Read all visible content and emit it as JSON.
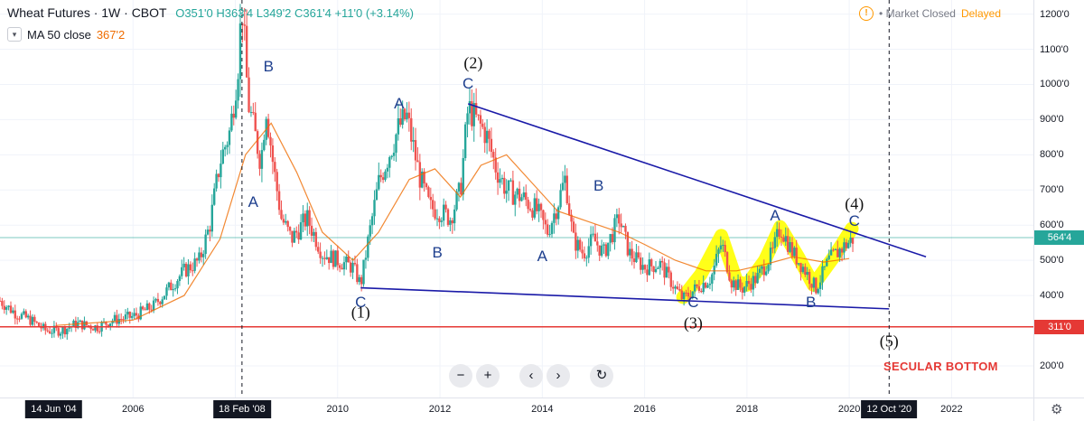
{
  "header": {
    "symbol": "Wheat Futures · 1W · CBOT",
    "open": "O351'0",
    "high": "H363'4",
    "low": "L349'2",
    "close": "C361'4",
    "change": "+11'0 (+3.14%)",
    "ma_label": "MA 50 close",
    "ma_value": "367'2",
    "market_status": "Market Closed",
    "delayed": "Delayed",
    "chevron_icon": "chevron-down-icon",
    "warning_icon": "exclamation-circle-icon"
  },
  "colors": {
    "up": "#26a69a",
    "down": "#ef5350",
    "ma": "#ef6c00",
    "trendline": "#1a1aa8",
    "support": "#e53935",
    "price_line": "#26a69a",
    "highlight": "#ffff00",
    "wave_label": "#1e3f8e"
  },
  "controls": [
    {
      "name": "zoom-out-button",
      "glyph": "−"
    },
    {
      "name": "zoom-in-button",
      "glyph": "+"
    },
    {
      "name": "scroll-left-button",
      "glyph": "‹"
    },
    {
      "name": "scroll-right-button",
      "glyph": "›"
    },
    {
      "name": "reset-chart-button",
      "glyph": "↻"
    }
  ],
  "settings_icon": "gear-icon",
  "chart_data": {
    "type": "candlestick",
    "title": "Wheat Futures · 1W · CBOT",
    "y_ticks": [
      "1200'0",
      "1100'0",
      "1000'0",
      "900'0",
      "800'0",
      "700'0",
      "600'0",
      "500'0",
      "400'0",
      "200'0"
    ],
    "y_tick_values": [
      1200,
      1100,
      1000,
      900,
      800,
      700,
      600,
      500,
      400,
      200
    ],
    "ylim": [
      110,
      1240
    ],
    "x_ticks": [
      "2006",
      "2008",
      "2010",
      "2012",
      "2014",
      "2016",
      "2018",
      "2020",
      "2022"
    ],
    "xlim": [
      2003.4,
      2023.6
    ],
    "price_badges": [
      {
        "label": "564'4",
        "value": 564.5,
        "color": "#26a69a"
      },
      {
        "label": "311'0",
        "value": 311,
        "color": "#e53935"
      }
    ],
    "date_badges": [
      {
        "label": "14 Jun '04",
        "x": 2004.45
      },
      {
        "label": "18 Feb '08",
        "x": 2008.13
      },
      {
        "label": "12 Oct '20",
        "x": 2020.78
      }
    ],
    "price_path": [
      [
        2003.4,
        385
      ],
      [
        2003.7,
        350
      ],
      [
        2004.0,
        330
      ],
      [
        2004.3,
        300
      ],
      [
        2004.6,
        300
      ],
      [
        2004.9,
        320
      ],
      [
        2005.3,
        310
      ],
      [
        2005.6,
        330
      ],
      [
        2006.0,
        340
      ],
      [
        2006.4,
        370
      ],
      [
        2006.7,
        420
      ],
      [
        2007.0,
        470
      ],
      [
        2007.3,
        500
      ],
      [
        2007.5,
        600
      ],
      [
        2007.7,
        780
      ],
      [
        2007.9,
        870
      ],
      [
        2008.05,
        1050
      ],
      [
        2008.13,
        1230
      ],
      [
        2008.25,
        950
      ],
      [
        2008.35,
        880
      ],
      [
        2008.5,
        780
      ],
      [
        2008.6,
        940
      ],
      [
        2008.75,
        760
      ],
      [
        2008.9,
        620
      ],
      [
        2009.1,
        560
      ],
      [
        2009.4,
        620
      ],
      [
        2009.7,
        520
      ],
      [
        2010.0,
        500
      ],
      [
        2010.3,
        480
      ],
      [
        2010.45,
        430
      ],
      [
        2010.6,
        560
      ],
      [
        2010.8,
        720
      ],
      [
        2011.0,
        800
      ],
      [
        2011.2,
        880
      ],
      [
        2011.35,
        910
      ],
      [
        2011.6,
        740
      ],
      [
        2011.8,
        650
      ],
      [
        2012.0,
        640
      ],
      [
        2012.2,
        620
      ],
      [
        2012.4,
        700
      ],
      [
        2012.55,
        935
      ],
      [
        2012.7,
        900
      ],
      [
        2012.9,
        860
      ],
      [
        2013.1,
        760
      ],
      [
        2013.3,
        700
      ],
      [
        2013.6,
        680
      ],
      [
        2013.9,
        640
      ],
      [
        2014.1,
        580
      ],
      [
        2014.3,
        660
      ],
      [
        2014.45,
        735
      ],
      [
        2014.6,
        560
      ],
      [
        2014.8,
        520
      ],
      [
        2015.0,
        560
      ],
      [
        2015.2,
        520
      ],
      [
        2015.5,
        620
      ],
      [
        2015.7,
        520
      ],
      [
        2016.0,
        480
      ],
      [
        2016.3,
        490
      ],
      [
        2016.6,
        420
      ],
      [
        2016.75,
        390
      ],
      [
        2017.0,
        420
      ],
      [
        2017.3,
        450
      ],
      [
        2017.5,
        550
      ],
      [
        2017.7,
        440
      ],
      [
        2017.9,
        420
      ],
      [
        2018.2,
        450
      ],
      [
        2018.5,
        520
      ],
      [
        2018.65,
        595
      ],
      [
        2018.9,
        520
      ],
      [
        2019.1,
        480
      ],
      [
        2019.35,
        420
      ],
      [
        2019.6,
        500
      ],
      [
        2019.9,
        540
      ],
      [
        2020.1,
        564
      ]
    ],
    "ma_path": [
      [
        2004.5,
        315
      ],
      [
        2006.0,
        330
      ],
      [
        2007.0,
        400
      ],
      [
        2007.7,
        560
      ],
      [
        2008.2,
        800
      ],
      [
        2008.7,
        890
      ],
      [
        2009.2,
        750
      ],
      [
        2009.7,
        580
      ],
      [
        2010.3,
        500
      ],
      [
        2010.8,
        580
      ],
      [
        2011.4,
        730
      ],
      [
        2011.9,
        760
      ],
      [
        2012.4,
        680
      ],
      [
        2012.8,
        770
      ],
      [
        2013.3,
        800
      ],
      [
        2013.8,
        720
      ],
      [
        2014.3,
        640
      ],
      [
        2014.9,
        610
      ],
      [
        2015.5,
        580
      ],
      [
        2016.0,
        545
      ],
      [
        2016.6,
        500
      ],
      [
        2017.2,
        470
      ],
      [
        2017.8,
        470
      ],
      [
        2018.4,
        490
      ],
      [
        2018.9,
        510
      ],
      [
        2019.5,
        495
      ],
      [
        2020.0,
        505
      ]
    ],
    "trendlines": [
      {
        "from": [
          2012.55,
          945
        ],
        "to": [
          2021.5,
          510
        ]
      },
      {
        "from": [
          2010.45,
          422
        ],
        "to": [
          2020.78,
          362
        ]
      }
    ],
    "support_level": 311,
    "highlight_path": [
      [
        2016.75,
        395
      ],
      [
        2017.1,
        460
      ],
      [
        2017.5,
        570
      ],
      [
        2017.8,
        440
      ],
      [
        2018.0,
        430
      ],
      [
        2018.35,
        500
      ],
      [
        2018.65,
        595
      ],
      [
        2019.0,
        510
      ],
      [
        2019.3,
        430
      ],
      [
        2019.7,
        510
      ],
      [
        2020.05,
        590
      ]
    ],
    "wave_labels": [
      {
        "text": "B",
        "x": 2008.65,
        "y": 1050
      },
      {
        "text": "A",
        "x": 2008.35,
        "y": 665
      },
      {
        "text": "C",
        "x": 2010.45,
        "y": 380
      },
      {
        "text": "A",
        "x": 2011.2,
        "y": 945
      },
      {
        "text": "C",
        "x": 2012.55,
        "y": 1000
      },
      {
        "text": "B",
        "x": 2011.95,
        "y": 520
      },
      {
        "text": "B",
        "x": 2015.1,
        "y": 712
      },
      {
        "text": "A",
        "x": 2014.0,
        "y": 510
      },
      {
        "text": "C",
        "x": 2016.95,
        "y": 380
      },
      {
        "text": "A",
        "x": 2018.55,
        "y": 625
      },
      {
        "text": "B",
        "x": 2019.25,
        "y": 380
      },
      {
        "text": "C",
        "x": 2020.1,
        "y": 610
      }
    ],
    "wave_numbers": [
      {
        "text": "(1)",
        "x": 2010.45,
        "y": 352
      },
      {
        "text": "(2)",
        "x": 2012.65,
        "y": 1060
      },
      {
        "text": "(3)",
        "x": 2016.95,
        "y": 321
      },
      {
        "text": "(4)",
        "x": 2020.1,
        "y": 660
      },
      {
        "text": "(5)",
        "x": 2020.78,
        "y": 268
      }
    ],
    "annotation": "SECULAR BOTTOM"
  }
}
